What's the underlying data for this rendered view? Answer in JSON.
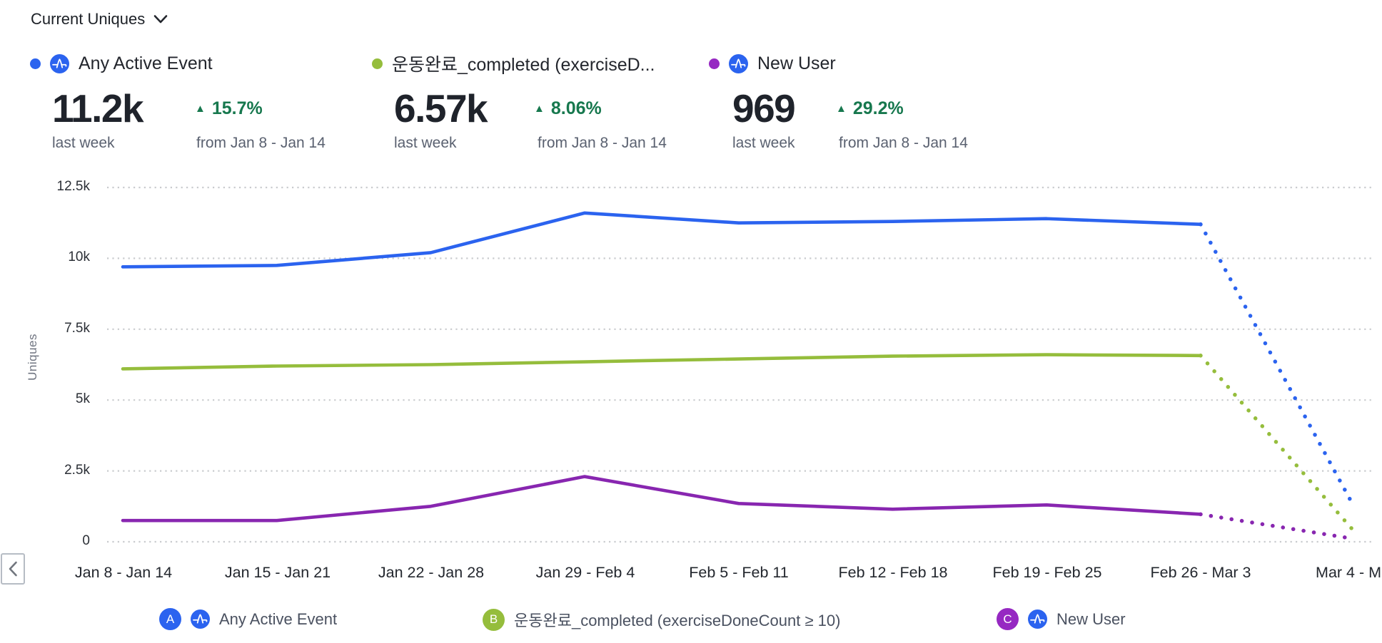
{
  "header": {
    "title": "Current Uniques"
  },
  "icons": {
    "metric_selector": "chevron-down",
    "pager_prev": "chevron-left",
    "event_badge": "amplitude-logo",
    "delta_up": "triangle-up"
  },
  "cards": [
    {
      "title": "Any Active Event",
      "dot_color": "#2b63ef",
      "has_amplitude_icon": true,
      "value": "11.2k",
      "delta": "15.7%",
      "delta_color": "#17784e",
      "period_label": "last week",
      "compare_label": "from Jan 8 - Jan 14"
    },
    {
      "title": "운동완료_completed (exerciseD...",
      "dot_color": "#95bd3c",
      "has_amplitude_icon": false,
      "value": "6.57k",
      "delta": "8.06%",
      "delta_color": "#17784e",
      "period_label": "last week",
      "compare_label": "from Jan 8 - Jan 14"
    },
    {
      "title": "New User",
      "dot_color": "#9628c2",
      "has_amplitude_icon": true,
      "value": "969",
      "delta": "29.2%",
      "delta_color": "#17784e",
      "period_label": "last week",
      "compare_label": "from Jan 8 - Jan 14"
    }
  ],
  "chart_data": {
    "type": "line",
    "title": "Current Uniques",
    "ylabel": "Uniques",
    "xlabel": "",
    "categories": [
      "Jan 8 - Jan 14",
      "Jan 15 - Jan 21",
      "Jan 22 - Jan 28",
      "Jan 29 - Feb 4",
      "Feb 5 - Feb 11",
      "Feb 12 - Feb 18",
      "Feb 19 - Feb 25",
      "Feb 26 - Mar 3",
      "Mar 4 - M..."
    ],
    "series": [
      {
        "name": "Any Active Event",
        "color": "#2b63ef",
        "values": [
          9700,
          9750,
          10200,
          11600,
          11250,
          11300,
          11400,
          11200,
          1200
        ]
      },
      {
        "name": "운동완료_completed (exerciseDoneCount ≥ 10)",
        "color": "#95bd3c",
        "values": [
          6100,
          6200,
          6250,
          6350,
          6450,
          6550,
          6600,
          6570,
          350
        ]
      },
      {
        "name": "New User",
        "color": "#8826b0",
        "values": [
          750,
          750,
          1250,
          2300,
          1350,
          1150,
          1300,
          970,
          100
        ]
      }
    ],
    "ylim": [
      0,
      12500
    ],
    "yticks": [
      {
        "label": "12.5k",
        "value": 12500
      },
      {
        "label": "10k",
        "value": 10000
      },
      {
        "label": "7.5k",
        "value": 7500
      },
      {
        "label": "5k",
        "value": 5000
      },
      {
        "label": "2.5k",
        "value": 2500
      },
      {
        "label": "0",
        "value": 0
      }
    ],
    "grid": "horizontal dotted gridlines",
    "legend_position": "bottom",
    "last_segment_style": "dotted (partial week projection Feb 26 - Mar 3 to Mar 4)"
  },
  "legend": {
    "items": [
      {
        "letter": "A",
        "label": "Any Active Event",
        "color": "#2b63ef",
        "has_amplitude_icon": true
      },
      {
        "letter": "B",
        "label": "운동완료_completed (exerciseDoneCount ≥ 10)",
        "color": "#95bd3c",
        "has_amplitude_icon": false
      },
      {
        "letter": "C",
        "label": "New User",
        "color": "#9628c2",
        "has_amplitude_icon": true
      }
    ]
  }
}
